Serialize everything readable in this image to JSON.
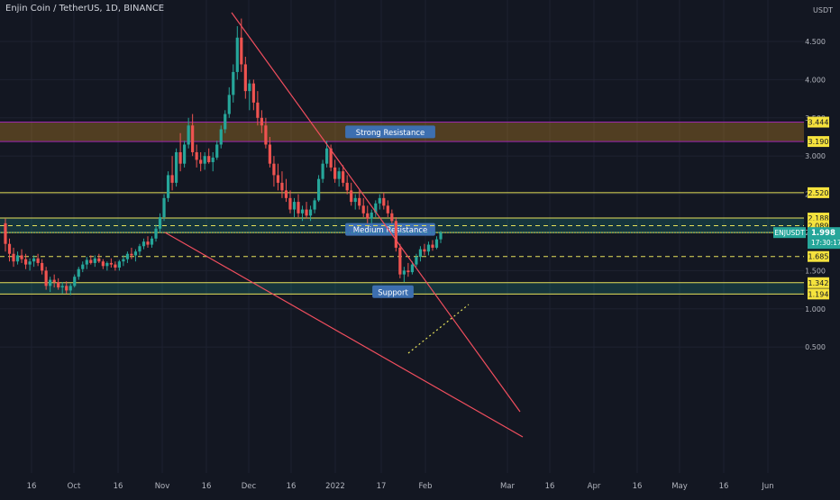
{
  "header": {
    "title": "Enjin Coin / TetherUS, 1D, BINANCE",
    "currency": "USDT"
  },
  "chart_data": {
    "type": "candlestick",
    "y_ticks": [
      "0.500",
      "1.000",
      "1.500",
      "2.000",
      "2.500",
      "3.000",
      "3.500",
      "4.000",
      "4.500"
    ],
    "x_ticks": [
      "16",
      "Oct",
      "16",
      "Nov",
      "16",
      "Dec",
      "16",
      "2022",
      "17",
      "Feb",
      "Mar",
      "16",
      "Apr",
      "16",
      "May",
      "16",
      "Jun"
    ],
    "ylim": [
      0.4,
      4.9
    ],
    "zones": [
      {
        "label": "Strong Resistance",
        "low": 3.19,
        "high": 3.444,
        "color": "#f5a623"
      },
      {
        "label": "Medium Resistance",
        "low": 1.998,
        "high": 2.188,
        "color": "#26a69a"
      },
      {
        "label": "Support",
        "low": 1.194,
        "high": 1.342,
        "color": "#26a69a"
      }
    ],
    "price_tags": [
      {
        "value": 3.444,
        "text": "3.444"
      },
      {
        "value": 3.19,
        "text": "3.190"
      },
      {
        "value": 2.52,
        "text": "2.520"
      },
      {
        "value": 2.188,
        "text": "2.188"
      },
      {
        "value": 2.089,
        "text": "2.089"
      },
      {
        "value": 1.991,
        "text": "1.991"
      },
      {
        "value": 1.685,
        "text": "1.685"
      },
      {
        "value": 1.342,
        "text": "1.342"
      },
      {
        "value": 1.194,
        "text": "1.194"
      }
    ],
    "last_price": {
      "symbol": "ENJUSDT",
      "value": "1.998",
      "countdown": "17:30:17"
    },
    "candles": [
      [
        2.12,
        2.18,
        1.75,
        1.85
      ],
      [
        1.85,
        1.92,
        1.62,
        1.72
      ],
      [
        1.72,
        1.8,
        1.55,
        1.62
      ],
      [
        1.62,
        1.75,
        1.58,
        1.7
      ],
      [
        1.7,
        1.78,
        1.6,
        1.65
      ],
      [
        1.65,
        1.72,
        1.52,
        1.58
      ],
      [
        1.58,
        1.66,
        1.5,
        1.62
      ],
      [
        1.62,
        1.7,
        1.55,
        1.66
      ],
      [
        1.66,
        1.72,
        1.56,
        1.6
      ],
      [
        1.6,
        1.65,
        1.45,
        1.5
      ],
      [
        1.5,
        1.55,
        1.25,
        1.3
      ],
      [
        1.3,
        1.42,
        1.22,
        1.38
      ],
      [
        1.38,
        1.45,
        1.28,
        1.35
      ],
      [
        1.35,
        1.4,
        1.25,
        1.28
      ],
      [
        1.28,
        1.35,
        1.2,
        1.3
      ],
      [
        1.3,
        1.36,
        1.2,
        1.24
      ],
      [
        1.24,
        1.33,
        1.18,
        1.3
      ],
      [
        1.3,
        1.45,
        1.28,
        1.42
      ],
      [
        1.42,
        1.55,
        1.38,
        1.52
      ],
      [
        1.52,
        1.62,
        1.48,
        1.58
      ],
      [
        1.58,
        1.68,
        1.52,
        1.64
      ],
      [
        1.64,
        1.7,
        1.58,
        1.6
      ],
      [
        1.6,
        1.7,
        1.55,
        1.66
      ],
      [
        1.66,
        1.72,
        1.6,
        1.62
      ],
      [
        1.62,
        1.65,
        1.52,
        1.56
      ],
      [
        1.56,
        1.62,
        1.5,
        1.6
      ],
      [
        1.6,
        1.66,
        1.54,
        1.58
      ],
      [
        1.58,
        1.62,
        1.5,
        1.54
      ],
      [
        1.54,
        1.64,
        1.5,
        1.62
      ],
      [
        1.62,
        1.7,
        1.56,
        1.65
      ],
      [
        1.65,
        1.75,
        1.6,
        1.72
      ],
      [
        1.72,
        1.8,
        1.65,
        1.7
      ],
      [
        1.7,
        1.78,
        1.62,
        1.75
      ],
      [
        1.75,
        1.85,
        1.7,
        1.82
      ],
      [
        1.82,
        1.92,
        1.78,
        1.88
      ],
      [
        1.88,
        1.95,
        1.8,
        1.84
      ],
      [
        1.84,
        1.95,
        1.8,
        1.92
      ],
      [
        1.92,
        2.1,
        1.88,
        2.05
      ],
      [
        2.05,
        2.25,
        2.0,
        2.2
      ],
      [
        2.2,
        2.5,
        2.15,
        2.45
      ],
      [
        2.45,
        2.8,
        2.4,
        2.75
      ],
      [
        2.75,
        3.0,
        2.55,
        2.65
      ],
      [
        2.65,
        3.1,
        2.6,
        3.05
      ],
      [
        3.05,
        3.3,
        2.8,
        2.9
      ],
      [
        2.9,
        3.2,
        2.85,
        3.15
      ],
      [
        3.15,
        3.5,
        3.1,
        3.4
      ],
      [
        3.4,
        3.55,
        3.0,
        3.05
      ],
      [
        3.05,
        3.15,
        2.85,
        2.95
      ],
      [
        2.95,
        3.05,
        2.8,
        2.9
      ],
      [
        2.9,
        3.05,
        2.82,
        3.0
      ],
      [
        3.0,
        3.1,
        2.9,
        2.92
      ],
      [
        2.92,
        3.05,
        2.8,
        2.98
      ],
      [
        2.98,
        3.2,
        2.95,
        3.15
      ],
      [
        3.15,
        3.4,
        3.1,
        3.35
      ],
      [
        3.35,
        3.6,
        3.3,
        3.55
      ],
      [
        3.55,
        3.9,
        3.5,
        3.8
      ],
      [
        3.8,
        4.2,
        3.7,
        4.1
      ],
      [
        4.1,
        4.7,
        4.0,
        4.55
      ],
      [
        4.55,
        4.8,
        4.1,
        4.2
      ],
      [
        4.2,
        4.3,
        3.75,
        3.85
      ],
      [
        3.85,
        4.0,
        3.6,
        3.95
      ],
      [
        3.95,
        4.0,
        3.6,
        3.7
      ],
      [
        3.7,
        3.85,
        3.4,
        3.5
      ],
      [
        3.5,
        3.6,
        3.3,
        3.4
      ],
      [
        3.4,
        3.5,
        3.1,
        3.15
      ],
      [
        3.15,
        3.25,
        2.85,
        2.9
      ],
      [
        2.9,
        3.0,
        2.6,
        2.75
      ],
      [
        2.75,
        2.9,
        2.55,
        2.65
      ],
      [
        2.65,
        2.8,
        2.45,
        2.55
      ],
      [
        2.55,
        2.7,
        2.4,
        2.45
      ],
      [
        2.45,
        2.55,
        2.25,
        2.3
      ],
      [
        2.3,
        2.45,
        2.2,
        2.4
      ],
      [
        2.4,
        2.5,
        2.2,
        2.25
      ],
      [
        2.25,
        2.35,
        2.15,
        2.3
      ],
      [
        2.3,
        2.4,
        2.18,
        2.22
      ],
      [
        2.22,
        2.35,
        2.15,
        2.3
      ],
      [
        2.3,
        2.45,
        2.25,
        2.42
      ],
      [
        2.42,
        2.75,
        2.4,
        2.7
      ],
      [
        2.7,
        2.95,
        2.65,
        2.9
      ],
      [
        2.9,
        3.2,
        2.85,
        3.1
      ],
      [
        3.1,
        3.15,
        2.8,
        2.85
      ],
      [
        2.85,
        2.95,
        2.65,
        2.7
      ],
      [
        2.7,
        2.85,
        2.6,
        2.8
      ],
      [
        2.8,
        2.88,
        2.6,
        2.65
      ],
      [
        2.65,
        2.75,
        2.5,
        2.55
      ],
      [
        2.55,
        2.65,
        2.35,
        2.4
      ],
      [
        2.4,
        2.5,
        2.3,
        2.45
      ],
      [
        2.45,
        2.55,
        2.3,
        2.35
      ],
      [
        2.35,
        2.45,
        2.2,
        2.25
      ],
      [
        2.25,
        2.35,
        2.12,
        2.18
      ],
      [
        2.18,
        2.3,
        2.12,
        2.26
      ],
      [
        2.26,
        2.42,
        2.2,
        2.38
      ],
      [
        2.38,
        2.5,
        2.3,
        2.45
      ],
      [
        2.45,
        2.52,
        2.3,
        2.35
      ],
      [
        2.35,
        2.42,
        2.2,
        2.25
      ],
      [
        2.25,
        2.3,
        2.12,
        2.15
      ],
      [
        2.15,
        2.2,
        1.75,
        1.8
      ],
      [
        1.8,
        1.85,
        1.4,
        1.45
      ],
      [
        1.45,
        1.55,
        1.35,
        1.5
      ],
      [
        1.5,
        1.6,
        1.42,
        1.48
      ],
      [
        1.48,
        1.62,
        1.45,
        1.58
      ],
      [
        1.58,
        1.72,
        1.55,
        1.68
      ],
      [
        1.68,
        1.82,
        1.62,
        1.78
      ],
      [
        1.78,
        1.85,
        1.7,
        1.75
      ],
      [
        1.75,
        1.88,
        1.7,
        1.84
      ],
      [
        1.84,
        1.9,
        1.76,
        1.8
      ],
      [
        1.8,
        1.95,
        1.78,
        1.91
      ],
      [
        1.91,
        2.02,
        1.86,
        1.998
      ]
    ]
  }
}
